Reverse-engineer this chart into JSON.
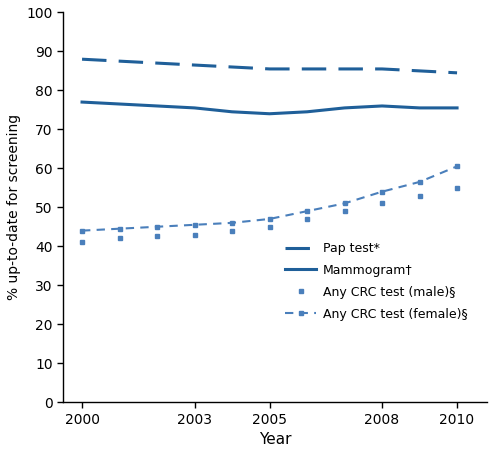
{
  "years": [
    2000,
    2001,
    2002,
    2003,
    2004,
    2005,
    2006,
    2007,
    2008,
    2009,
    2010
  ],
  "pap_test": [
    88,
    87.5,
    87,
    86.5,
    86,
    85.5,
    85.5,
    85.5,
    85.5,
    85,
    84.5
  ],
  "mammogram": [
    77,
    76.5,
    76,
    75.5,
    74.5,
    74,
    74.5,
    75.5,
    76,
    75.5,
    75.5
  ],
  "crc_male": [
    41,
    42,
    42.5,
    43,
    44,
    45,
    47,
    49,
    51,
    53,
    55
  ],
  "crc_female": [
    44,
    44.5,
    45,
    45.5,
    46,
    47,
    49,
    51,
    54,
    56.5,
    60.5
  ],
  "color": "#1f5f99",
  "color_light": "#4a7fbb",
  "ylim": [
    0,
    100
  ],
  "yticks": [
    0,
    10,
    20,
    30,
    40,
    50,
    60,
    70,
    80,
    90,
    100
  ],
  "xticks": [
    2000,
    2003,
    2005,
    2008,
    2010
  ],
  "xlabel": "Year",
  "ylabel": "% up-to-date for screening",
  "legend_labels": [
    "Pap test*",
    "Mammogram†",
    "Any CRC test (male)§",
    "Any CRC test (female)§"
  ],
  "figsize": [
    4.94,
    4.54
  ],
  "dpi": 100
}
